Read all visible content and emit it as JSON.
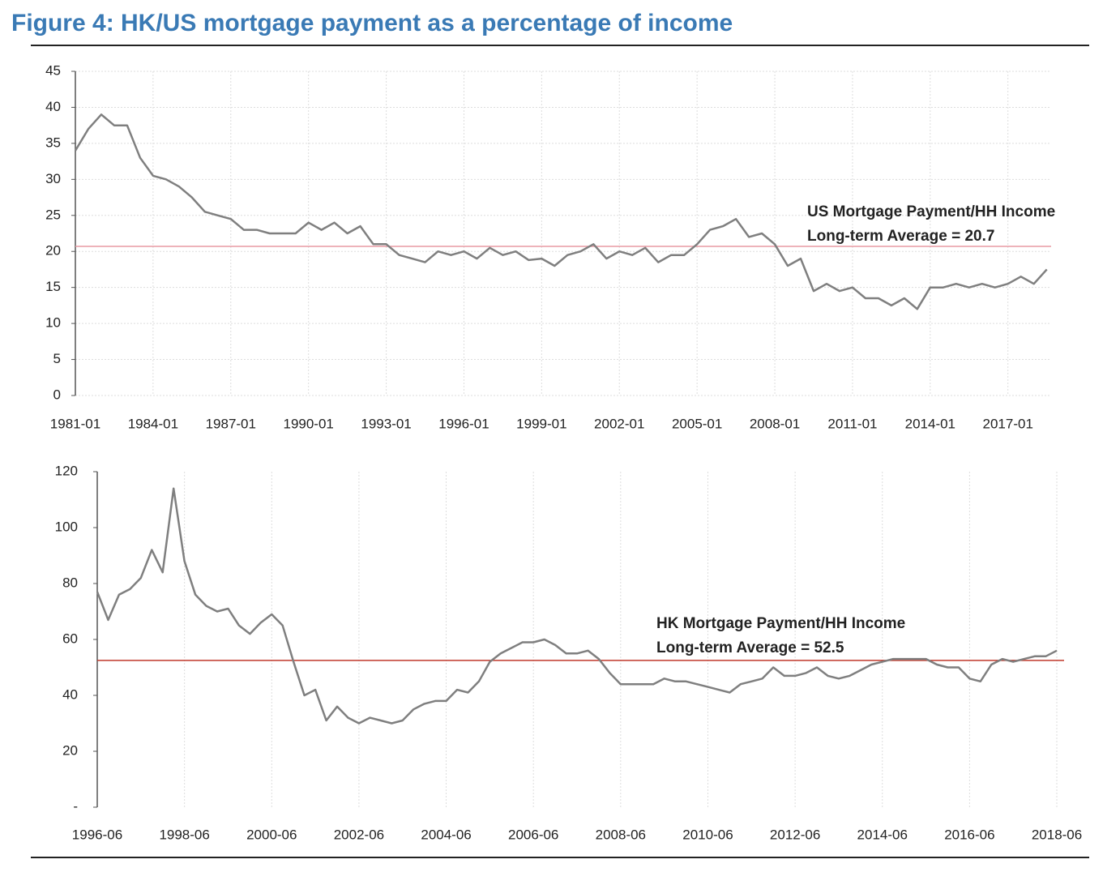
{
  "title": "Figure 4: HK/US mortgage payment as a percentage of income",
  "chart_data": [
    {
      "type": "line",
      "x": [
        "1981-01",
        "1981-07",
        "1982-01",
        "1982-07",
        "1983-01",
        "1983-07",
        "1984-01",
        "1984-07",
        "1985-01",
        "1985-07",
        "1986-01",
        "1986-07",
        "1987-01",
        "1987-07",
        "1988-01",
        "1988-07",
        "1989-01",
        "1989-07",
        "1990-01",
        "1990-07",
        "1991-01",
        "1991-07",
        "1992-01",
        "1992-07",
        "1993-01",
        "1993-07",
        "1994-01",
        "1994-07",
        "1995-01",
        "1995-07",
        "1996-01",
        "1996-07",
        "1997-01",
        "1997-07",
        "1998-01",
        "1998-07",
        "1999-01",
        "1999-07",
        "2000-01",
        "2000-07",
        "2001-01",
        "2001-07",
        "2002-01",
        "2002-07",
        "2003-01",
        "2003-07",
        "2004-01",
        "2004-07",
        "2005-01",
        "2005-07",
        "2006-01",
        "2006-07",
        "2007-01",
        "2007-07",
        "2008-01",
        "2008-07",
        "2009-01",
        "2009-07",
        "2010-01",
        "2010-07",
        "2011-01",
        "2011-07",
        "2012-01",
        "2012-07",
        "2013-01",
        "2013-07",
        "2014-01",
        "2014-07",
        "2015-01",
        "2015-07",
        "2016-01",
        "2016-07",
        "2017-01",
        "2017-07",
        "2018-01",
        "2018-07"
      ],
      "values": [
        34,
        37,
        39,
        37.5,
        37.5,
        33,
        30.5,
        30,
        29,
        27.5,
        25.5,
        25,
        24.5,
        23,
        23,
        22.5,
        22.5,
        22.5,
        24,
        23,
        24,
        22.5,
        23.5,
        21,
        21,
        19.5,
        19,
        18.5,
        20,
        19.5,
        20,
        19,
        20.5,
        19.5,
        20,
        18.8,
        19,
        18,
        19.5,
        20,
        21,
        19,
        20,
        19.5,
        20.5,
        18.5,
        19.5,
        19.5,
        21,
        23,
        23.5,
        24.5,
        22,
        22.5,
        21,
        18,
        19,
        14.5,
        15.5,
        14.5,
        15,
        13.5,
        13.5,
        12.5,
        13.5,
        12,
        15,
        15,
        15.5,
        15,
        15.5,
        15,
        15.5,
        16.5,
        15.5,
        17.5
      ],
      "color": "#7f7f7f",
      "xlim": [
        "1981-01",
        "2018-09"
      ],
      "xticks": [
        "1981-01",
        "1984-01",
        "1987-01",
        "1990-01",
        "1993-01",
        "1996-01",
        "1999-01",
        "2002-01",
        "2005-01",
        "2008-01",
        "2011-01",
        "2014-01",
        "2017-01"
      ],
      "ylim": [
        0,
        45
      ],
      "yticks": [
        0,
        5,
        10,
        15,
        20,
        25,
        30,
        35,
        40,
        45
      ],
      "grid": true,
      "average": {
        "value": 20.7,
        "color": "#e89aa3"
      },
      "annotations": [
        "US Mortgage Payment/HH Income",
        "Long-term Average = 20.7"
      ]
    },
    {
      "type": "line",
      "x": [
        "1996-06",
        "1996-09",
        "1996-12",
        "1997-03",
        "1997-06",
        "1997-09",
        "1997-12",
        "1998-03",
        "1998-06",
        "1998-09",
        "1998-12",
        "1999-03",
        "1999-06",
        "1999-09",
        "1999-12",
        "2000-03",
        "2000-06",
        "2000-09",
        "2000-12",
        "2001-03",
        "2001-06",
        "2001-09",
        "2001-12",
        "2002-03",
        "2002-06",
        "2002-09",
        "2002-12",
        "2003-03",
        "2003-06",
        "2003-09",
        "2003-12",
        "2004-03",
        "2004-06",
        "2004-09",
        "2004-12",
        "2005-03",
        "2005-06",
        "2005-09",
        "2005-12",
        "2006-03",
        "2006-06",
        "2006-09",
        "2006-12",
        "2007-03",
        "2007-06",
        "2007-09",
        "2007-12",
        "2008-03",
        "2008-06",
        "2008-09",
        "2008-12",
        "2009-03",
        "2009-06",
        "2009-09",
        "2009-12",
        "2010-03",
        "2010-06",
        "2010-09",
        "2010-12",
        "2011-03",
        "2011-06",
        "2011-09",
        "2011-12",
        "2012-03",
        "2012-06",
        "2012-09",
        "2012-12",
        "2013-03",
        "2013-06",
        "2013-09",
        "2013-12",
        "2014-03",
        "2014-06",
        "2014-09",
        "2014-12",
        "2015-03",
        "2015-06",
        "2015-09",
        "2015-12",
        "2016-03",
        "2016-06",
        "2016-09",
        "2016-12",
        "2017-03",
        "2017-06",
        "2017-09",
        "2017-12",
        "2018-03",
        "2018-06"
      ],
      "values": [
        77,
        67,
        76,
        78,
        82,
        92,
        84,
        114,
        88,
        76,
        72,
        70,
        71,
        65,
        62,
        66,
        69,
        65,
        52,
        40,
        42,
        31,
        36,
        32,
        30,
        32,
        31,
        30,
        31,
        35,
        37,
        38,
        38,
        42,
        41,
        45,
        52,
        55,
        57,
        59,
        59,
        60,
        58,
        55,
        55,
        56,
        53,
        48,
        44,
        44,
        44,
        44,
        46,
        45,
        45,
        44,
        43,
        42,
        41,
        44,
        45,
        46,
        50,
        47,
        47,
        48,
        50,
        47,
        46,
        47,
        49,
        51,
        52,
        53,
        53,
        53,
        53,
        51,
        50,
        50,
        46,
        45,
        51,
        53,
        52,
        53,
        54,
        54,
        56
      ],
      "color": "#7f7f7f",
      "xlim": [
        "1996-06",
        "2018-08"
      ],
      "xticks": [
        "1996-06",
        "1998-06",
        "2000-06",
        "2002-06",
        "2004-06",
        "2006-06",
        "2008-06",
        "2010-06",
        "2012-06",
        "2014-06",
        "2016-06",
        "2018-06"
      ],
      "ylim": [
        0,
        120
      ],
      "yticks": [
        {
          "value": 0,
          "label": "-"
        },
        20,
        40,
        60,
        80,
        100,
        120
      ],
      "grid": true,
      "average": {
        "value": 52.5,
        "color": "#c0392b"
      },
      "annotations": [
        "HK Mortgage Payment/HH Income",
        "Long-term Average = 52.5"
      ]
    }
  ]
}
